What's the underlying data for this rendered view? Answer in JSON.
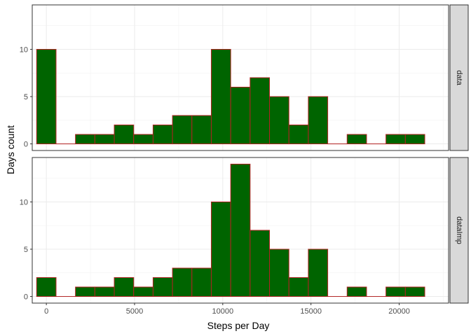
{
  "chart_data": {
    "type": "bar",
    "subtype": "faceted-histogram",
    "title": "",
    "xlabel": "Steps per Day",
    "ylabel": "Days count",
    "xlim": [
      -800,
      22800
    ],
    "ylim": [
      -0.7,
      14.7
    ],
    "x_ticks": [
      0,
      5000,
      10000,
      15000,
      20000
    ],
    "x_tick_labels": [
      "0",
      "5000",
      "10000",
      "15000",
      "20000"
    ],
    "y_ticks": [
      0,
      5,
      10
    ],
    "y_tick_labels": [
      "0",
      "5",
      "10"
    ],
    "bin_width": 1100,
    "bin_centers": [
      0,
      1100,
      2200,
      3300,
      4400,
      5500,
      6600,
      7700,
      8800,
      9900,
      11000,
      12100,
      13200,
      14300,
      15400,
      16500,
      17600,
      18700,
      19800,
      20900
    ],
    "grid": true,
    "legend": "none",
    "fill_color": "#006400",
    "outline_color": "#b22222",
    "panels": [
      {
        "name": "data",
        "values": [
          10,
          0,
          1,
          1,
          2,
          1,
          2,
          3,
          3,
          10,
          6,
          7,
          5,
          2,
          5,
          0,
          1,
          0,
          1,
          1
        ]
      },
      {
        "name": "dataImp",
        "values": [
          2,
          0,
          1,
          1,
          2,
          1,
          2,
          3,
          3,
          10,
          14,
          7,
          5,
          2,
          5,
          0,
          1,
          0,
          1,
          1
        ]
      }
    ]
  }
}
